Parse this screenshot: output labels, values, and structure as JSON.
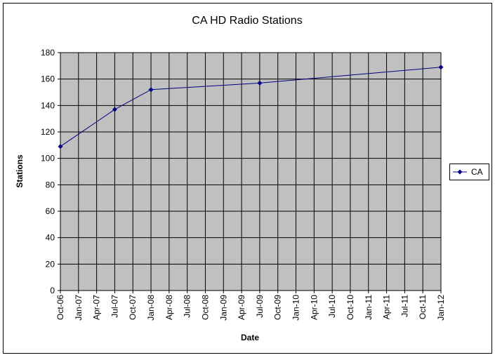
{
  "chart_data": {
    "type": "line",
    "title": "CA HD Radio Stations",
    "x_label": "Date",
    "y_label": "Stations",
    "categories": [
      "Oct-06",
      "Jan-07",
      "Apr-07",
      "Jul-07",
      "Oct-07",
      "Jan-08",
      "Apr-08",
      "Jul-08",
      "Oct-08",
      "Jan-09",
      "Apr-09",
      "Jul-09",
      "Oct-09",
      "Jan-10",
      "Apr-10",
      "Jul-10",
      "Oct-10",
      "Jan-11",
      "Apr-11",
      "Jul-11",
      "Oct-11",
      "Jan-12"
    ],
    "series": [
      {
        "name": "CA",
        "color": "#000080",
        "x": [
          "Oct-06",
          "Jul-07",
          "Jan-08",
          "Jul-09",
          "Jan-12"
        ],
        "values": [
          109,
          137,
          152,
          157,
          169
        ]
      }
    ],
    "ylim": [
      0,
      180
    ],
    "yticks": [
      0,
      20,
      40,
      60,
      80,
      100,
      120,
      140,
      160,
      180
    ],
    "grid": true,
    "legend": "right"
  }
}
